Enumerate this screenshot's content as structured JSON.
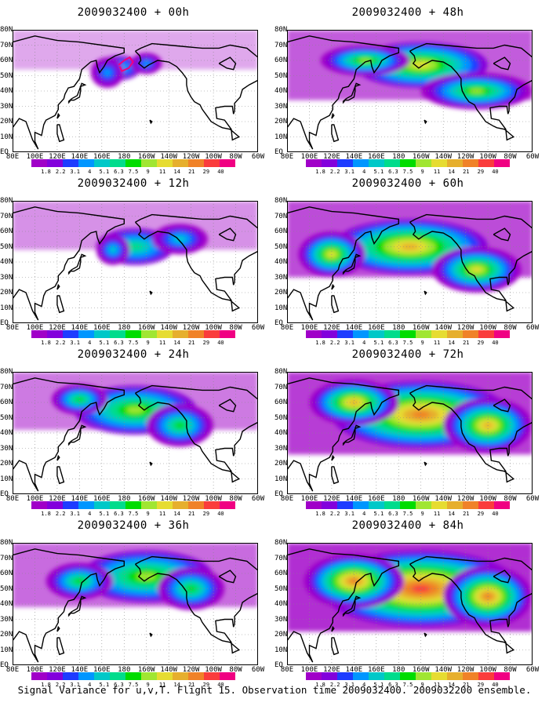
{
  "panels": [
    {
      "title": "2009032400 + 00h",
      "intensity": 0.15
    },
    {
      "title": "2009032400 + 48h",
      "intensity": 0.65
    },
    {
      "title": "2009032400 + 12h",
      "intensity": 0.3
    },
    {
      "title": "2009032400 + 60h",
      "intensity": 0.75
    },
    {
      "title": "2009032400 + 24h",
      "intensity": 0.45
    },
    {
      "title": "2009032400 + 72h",
      "intensity": 0.85
    },
    {
      "title": "2009032400 + 36h",
      "intensity": 0.55
    },
    {
      "title": "2009032400 + 84h",
      "intensity": 0.95
    }
  ],
  "lat_labels": [
    "80N",
    "70N",
    "60N",
    "50N",
    "40N",
    "30N",
    "20N",
    "10N",
    "EQ"
  ],
  "lon_labels": [
    "80E",
    "100E",
    "120E",
    "140E",
    "160E",
    "180",
    "160W",
    "140W",
    "120W",
    "100W",
    "80W",
    "60W"
  ],
  "colorbar": {
    "labels": [
      "1.8",
      "2.2",
      "3.1",
      "4",
      "5.1",
      "6.3",
      "7.5",
      "9",
      "11",
      "14",
      "21",
      "29",
      "40"
    ],
    "colors": [
      "#a000c8",
      "#8200dc",
      "#1e3cff",
      "#0096ff",
      "#00c8c8",
      "#00dc8c",
      "#00dc00",
      "#a0e632",
      "#e6dc32",
      "#e6af2d",
      "#f08228",
      "#fa3c3c",
      "#f00082"
    ]
  },
  "caption": "Signal Variance for u,v,T. Flight 15. Observation time 2009032400. 2009032200 ensemble."
}
